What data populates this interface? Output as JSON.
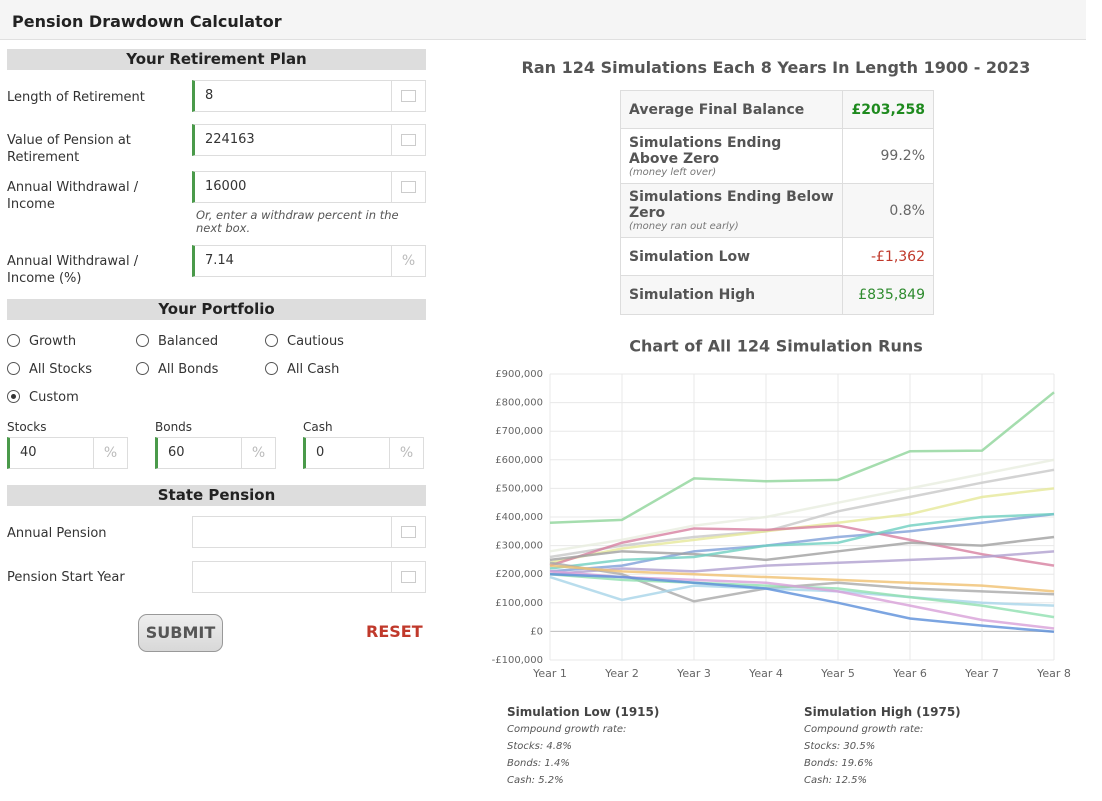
{
  "header": {
    "title": "Pension Drawdown Calculator"
  },
  "plan": {
    "title": "Your Retirement Plan",
    "fields": [
      {
        "label": "Length of Retirement",
        "value": "8"
      },
      {
        "label": "Value of Pension at Retirement",
        "value": "224163"
      },
      {
        "label": "Annual Withdrawal / Income",
        "value": "16000"
      },
      {
        "label": "Annual Withdrawal / Income (%)",
        "value": "7.14",
        "unit": "%"
      }
    ],
    "note": "Or, enter a withdraw percent in the next box."
  },
  "portfolio": {
    "title": "Your Portfolio",
    "options": [
      "Growth",
      "Balanced",
      "Cautious",
      "All Stocks",
      "All Bonds",
      "All Cash",
      "Custom"
    ],
    "selected": "Custom",
    "allocation": [
      {
        "label": "Stocks",
        "value": "40",
        "unit": "%"
      },
      {
        "label": "Bonds",
        "value": "60",
        "unit": "%"
      },
      {
        "label": "Cash",
        "value": "0",
        "unit": "%"
      }
    ]
  },
  "state_pension": {
    "title": "State Pension",
    "fields": [
      {
        "label": "Annual Pension"
      },
      {
        "label": "Pension Start Year"
      }
    ]
  },
  "buttons": {
    "submit": "SUBMIT",
    "reset": "RESET"
  },
  "results": {
    "heading": "Ran 124 Simulations Each 8 Years In Length 1900 - 2023",
    "rows": [
      {
        "label": "Average Final Balance",
        "value": "£203,258",
        "color": "#1e8a1e"
      },
      {
        "label": "Simulations Ending Above Zero",
        "note": "(money left over)",
        "value": "99.2%",
        "color": "#666"
      },
      {
        "label": "Simulations Ending Below Zero",
        "note": "(money ran out early)",
        "value": "0.8%",
        "color": "#666"
      },
      {
        "label": "Simulation Low",
        "value": "-£1,362",
        "color": "#c0392b"
      },
      {
        "label": "Simulation High",
        "value": "£835,849",
        "color": "#2e8b2e"
      }
    ]
  },
  "chart_data": {
    "type": "line",
    "title": "Chart of All 124 Simulation Runs",
    "grid": true,
    "categories": [
      "Year 1",
      "Year 2",
      "Year 3",
      "Year 4",
      "Year 5",
      "Year 6",
      "Year 7",
      "Year 8"
    ],
    "ylim": [
      -100000,
      900000
    ],
    "yticks": [
      {
        "value": -100000,
        "label": "-£100,000"
      },
      {
        "value": 0,
        "label": "£0"
      },
      {
        "value": 100000,
        "label": "£100,000"
      },
      {
        "value": 200000,
        "label": "£200,000"
      },
      {
        "value": 300000,
        "label": "£300,000"
      },
      {
        "value": 400000,
        "label": "£400,000"
      },
      {
        "value": 500000,
        "label": "£500,000"
      },
      {
        "value": 600000,
        "label": "£600,000"
      },
      {
        "value": 700000,
        "label": "£700,000"
      },
      {
        "value": 800000,
        "label": "£800,000"
      },
      {
        "value": 900000,
        "label": "£900,000"
      }
    ],
    "series": [
      {
        "color": "#8fd49a",
        "values": [
          380000,
          390000,
          535000,
          525000,
          530000,
          630000,
          632000,
          836000
        ]
      },
      {
        "color": "#e8eee0",
        "values": [
          280000,
          320000,
          370000,
          400000,
          450000,
          500000,
          550000,
          600000
        ]
      },
      {
        "color": "#c8c8c8",
        "values": [
          260000,
          300000,
          330000,
          350000,
          420000,
          470000,
          520000,
          565000
        ]
      },
      {
        "color": "#e6e89a",
        "values": [
          240000,
          290000,
          320000,
          350000,
          380000,
          410000,
          470000,
          500000
        ]
      },
      {
        "color": "#7fa0d8",
        "values": [
          210000,
          230000,
          280000,
          300000,
          330000,
          350000,
          380000,
          410000
        ]
      },
      {
        "color": "#d77fa0",
        "values": [
          230000,
          310000,
          360000,
          355000,
          370000,
          320000,
          270000,
          230000
        ]
      },
      {
        "color": "#a0a0a0",
        "values": [
          250000,
          280000,
          270000,
          250000,
          280000,
          310000,
          300000,
          330000
        ]
      },
      {
        "color": "#6fd0c0",
        "values": [
          220000,
          250000,
          260000,
          300000,
          310000,
          370000,
          400000,
          410000
        ]
      },
      {
        "color": "#b0a0d0",
        "values": [
          200000,
          220000,
          210000,
          230000,
          240000,
          250000,
          260000,
          280000
        ]
      },
      {
        "color": "#a9a9a9",
        "values": [
          240000,
          200000,
          105000,
          150000,
          170000,
          150000,
          140000,
          130000
        ]
      },
      {
        "color": "#a8d4e8",
        "values": [
          190000,
          110000,
          160000,
          150000,
          140000,
          120000,
          100000,
          90000
        ]
      },
      {
        "color": "#f0c070",
        "values": [
          230000,
          210000,
          200000,
          190000,
          180000,
          170000,
          160000,
          140000
        ]
      },
      {
        "color": "#90e0b0",
        "values": [
          200000,
          180000,
          170000,
          160000,
          150000,
          120000,
          90000,
          50000
        ]
      },
      {
        "color": "#d8a0d8",
        "values": [
          210000,
          190000,
          180000,
          170000,
          140000,
          90000,
          40000,
          10000
        ]
      },
      {
        "color": "#5b8fd9",
        "values": [
          200000,
          190000,
          170000,
          150000,
          100000,
          45000,
          20000,
          -1362
        ]
      }
    ]
  },
  "footer": {
    "low": {
      "title": "Simulation Low (1915)",
      "lines": [
        "Compound growth rate:",
        "Stocks: 4.8%",
        "Bonds: 1.4%",
        "Cash: 5.2%"
      ]
    },
    "high": {
      "title": "Simulation High (1975)",
      "lines": [
        "Compound growth rate:",
        "Stocks: 30.5%",
        "Bonds: 19.6%",
        "Cash: 12.5%"
      ]
    }
  }
}
